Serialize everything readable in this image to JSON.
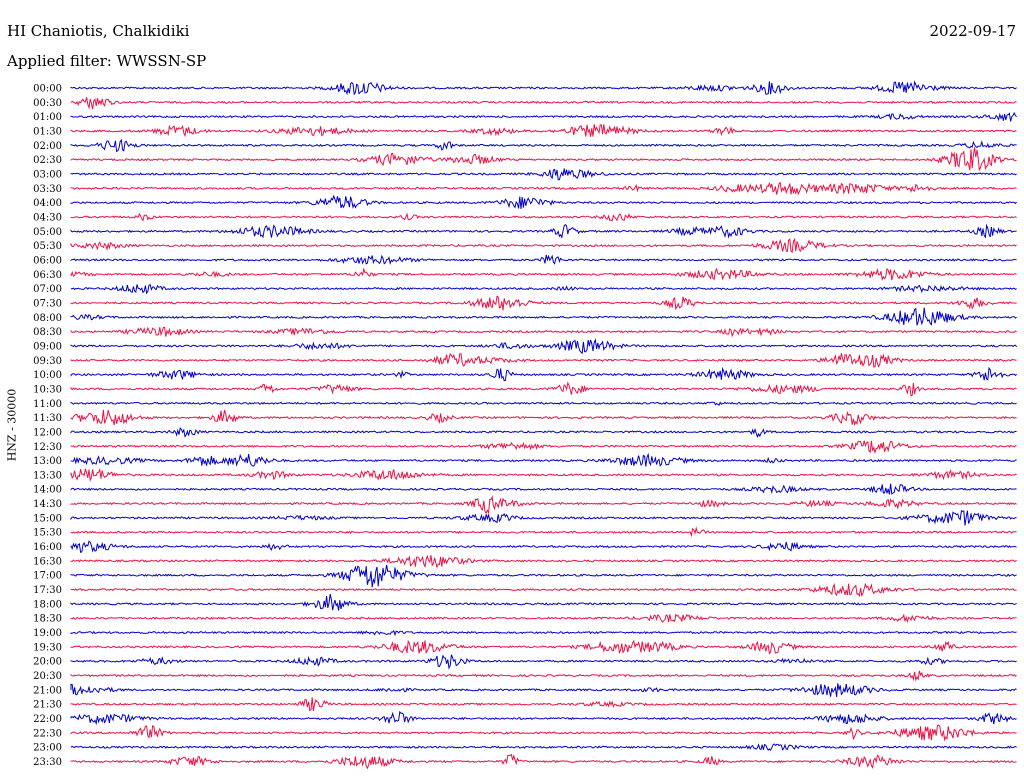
{
  "header": {
    "station": "HI Chaniotis, Chalkidiki",
    "date": "2022-09-17",
    "filter": "Applied filter: WWSSN-SP"
  },
  "chart_data": {
    "type": "line",
    "title": "HI Chaniotis, Chalkidiki",
    "ylabel": "HNZ - 30000",
    "xlabel": "",
    "row_labels": [
      "00:00",
      "00:30",
      "01:00",
      "01:30",
      "02:00",
      "02:30",
      "03:00",
      "03:30",
      "04:00",
      "04:30",
      "05:00",
      "05:30",
      "06:00",
      "06:30",
      "07:00",
      "07:30",
      "08:00",
      "08:30",
      "09:00",
      "09:30",
      "10:00",
      "10:30",
      "11:00",
      "11:30",
      "12:00",
      "12:30",
      "13:00",
      "13:30",
      "14:00",
      "14:30",
      "15:00",
      "15:30",
      "16:00",
      "16:30",
      "17:00",
      "17:30",
      "18:00",
      "18:30",
      "19:00",
      "19:30",
      "20:00",
      "20:30",
      "21:00",
      "21:30",
      "22:00",
      "22:30",
      "23:00",
      "23:30"
    ],
    "colors": [
      "#0000cc",
      "#ee1144"
    ],
    "grid": false,
    "legend": "none"
  }
}
